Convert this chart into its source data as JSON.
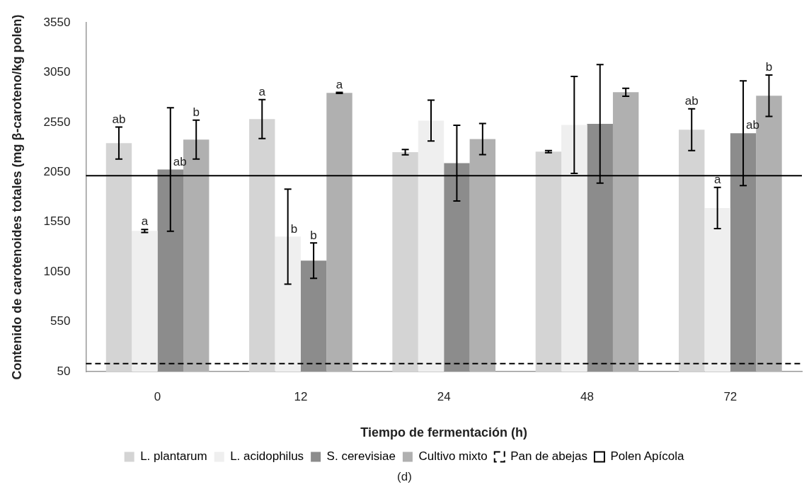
{
  "chart_data": {
    "type": "bar",
    "xlabel": "Tiempo de fermentación (h)",
    "ylabel": "Contenido de carotenoides totales (mg β-caroteno/kg polen)",
    "categories": [
      "0",
      "12",
      "24",
      "48",
      "72"
    ],
    "series": [
      {
        "name": "L. plantarum",
        "color": "#d4d4d4",
        "values": [
          2343,
          2584,
          2252,
          2257,
          2477
        ],
        "errors": [
          160,
          195,
          27,
          10,
          209
        ],
        "value_labels": [
          "ab",
          "a",
          null,
          null,
          "ab"
        ]
      },
      {
        "name": "L. acidophilus",
        "color": "#efefef",
        "values": [
          1461,
          1404,
          2568,
          2525,
          1691
        ],
        "errors": [
          15,
          476,
          205,
          487,
          207
        ],
        "value_labels": [
          "a",
          "b",
          null,
          null,
          "a"
        ]
      },
      {
        "name": "S. cerevisiae",
        "color": "#8c8c8c",
        "values": [
          2078,
          1163,
          2142,
          2536,
          2442
        ],
        "errors": [
          620,
          177,
          380,
          595,
          525
        ],
        "value_labels": [
          "ab",
          "b",
          null,
          null,
          "ab"
        ]
      },
      {
        "name": "Cultivo mixto",
        "color": "#b0b0b0",
        "values": [
          2378,
          2847,
          2383,
          2853,
          2818
        ],
        "errors": [
          195,
          5,
          157,
          40,
          207
        ],
        "value_labels": [
          "b",
          "a",
          null,
          null,
          "b"
        ]
      }
    ],
    "ref_lines": [
      {
        "axis": "y",
        "value": 130,
        "label": "Pan de abejas",
        "line_style": "dashed",
        "color": "#000000"
      },
      {
        "axis": "y",
        "value": 2015,
        "label": "Polen Apícola",
        "line_style": "solid",
        "color": "#000000"
      }
    ],
    "ylim": [
      50,
      3550
    ],
    "yticks": [
      50,
      550,
      1050,
      1550,
      2050,
      2550,
      3050,
      3550
    ],
    "grid": false,
    "legend": "bottom",
    "annotations": [
      "(d)"
    ]
  }
}
